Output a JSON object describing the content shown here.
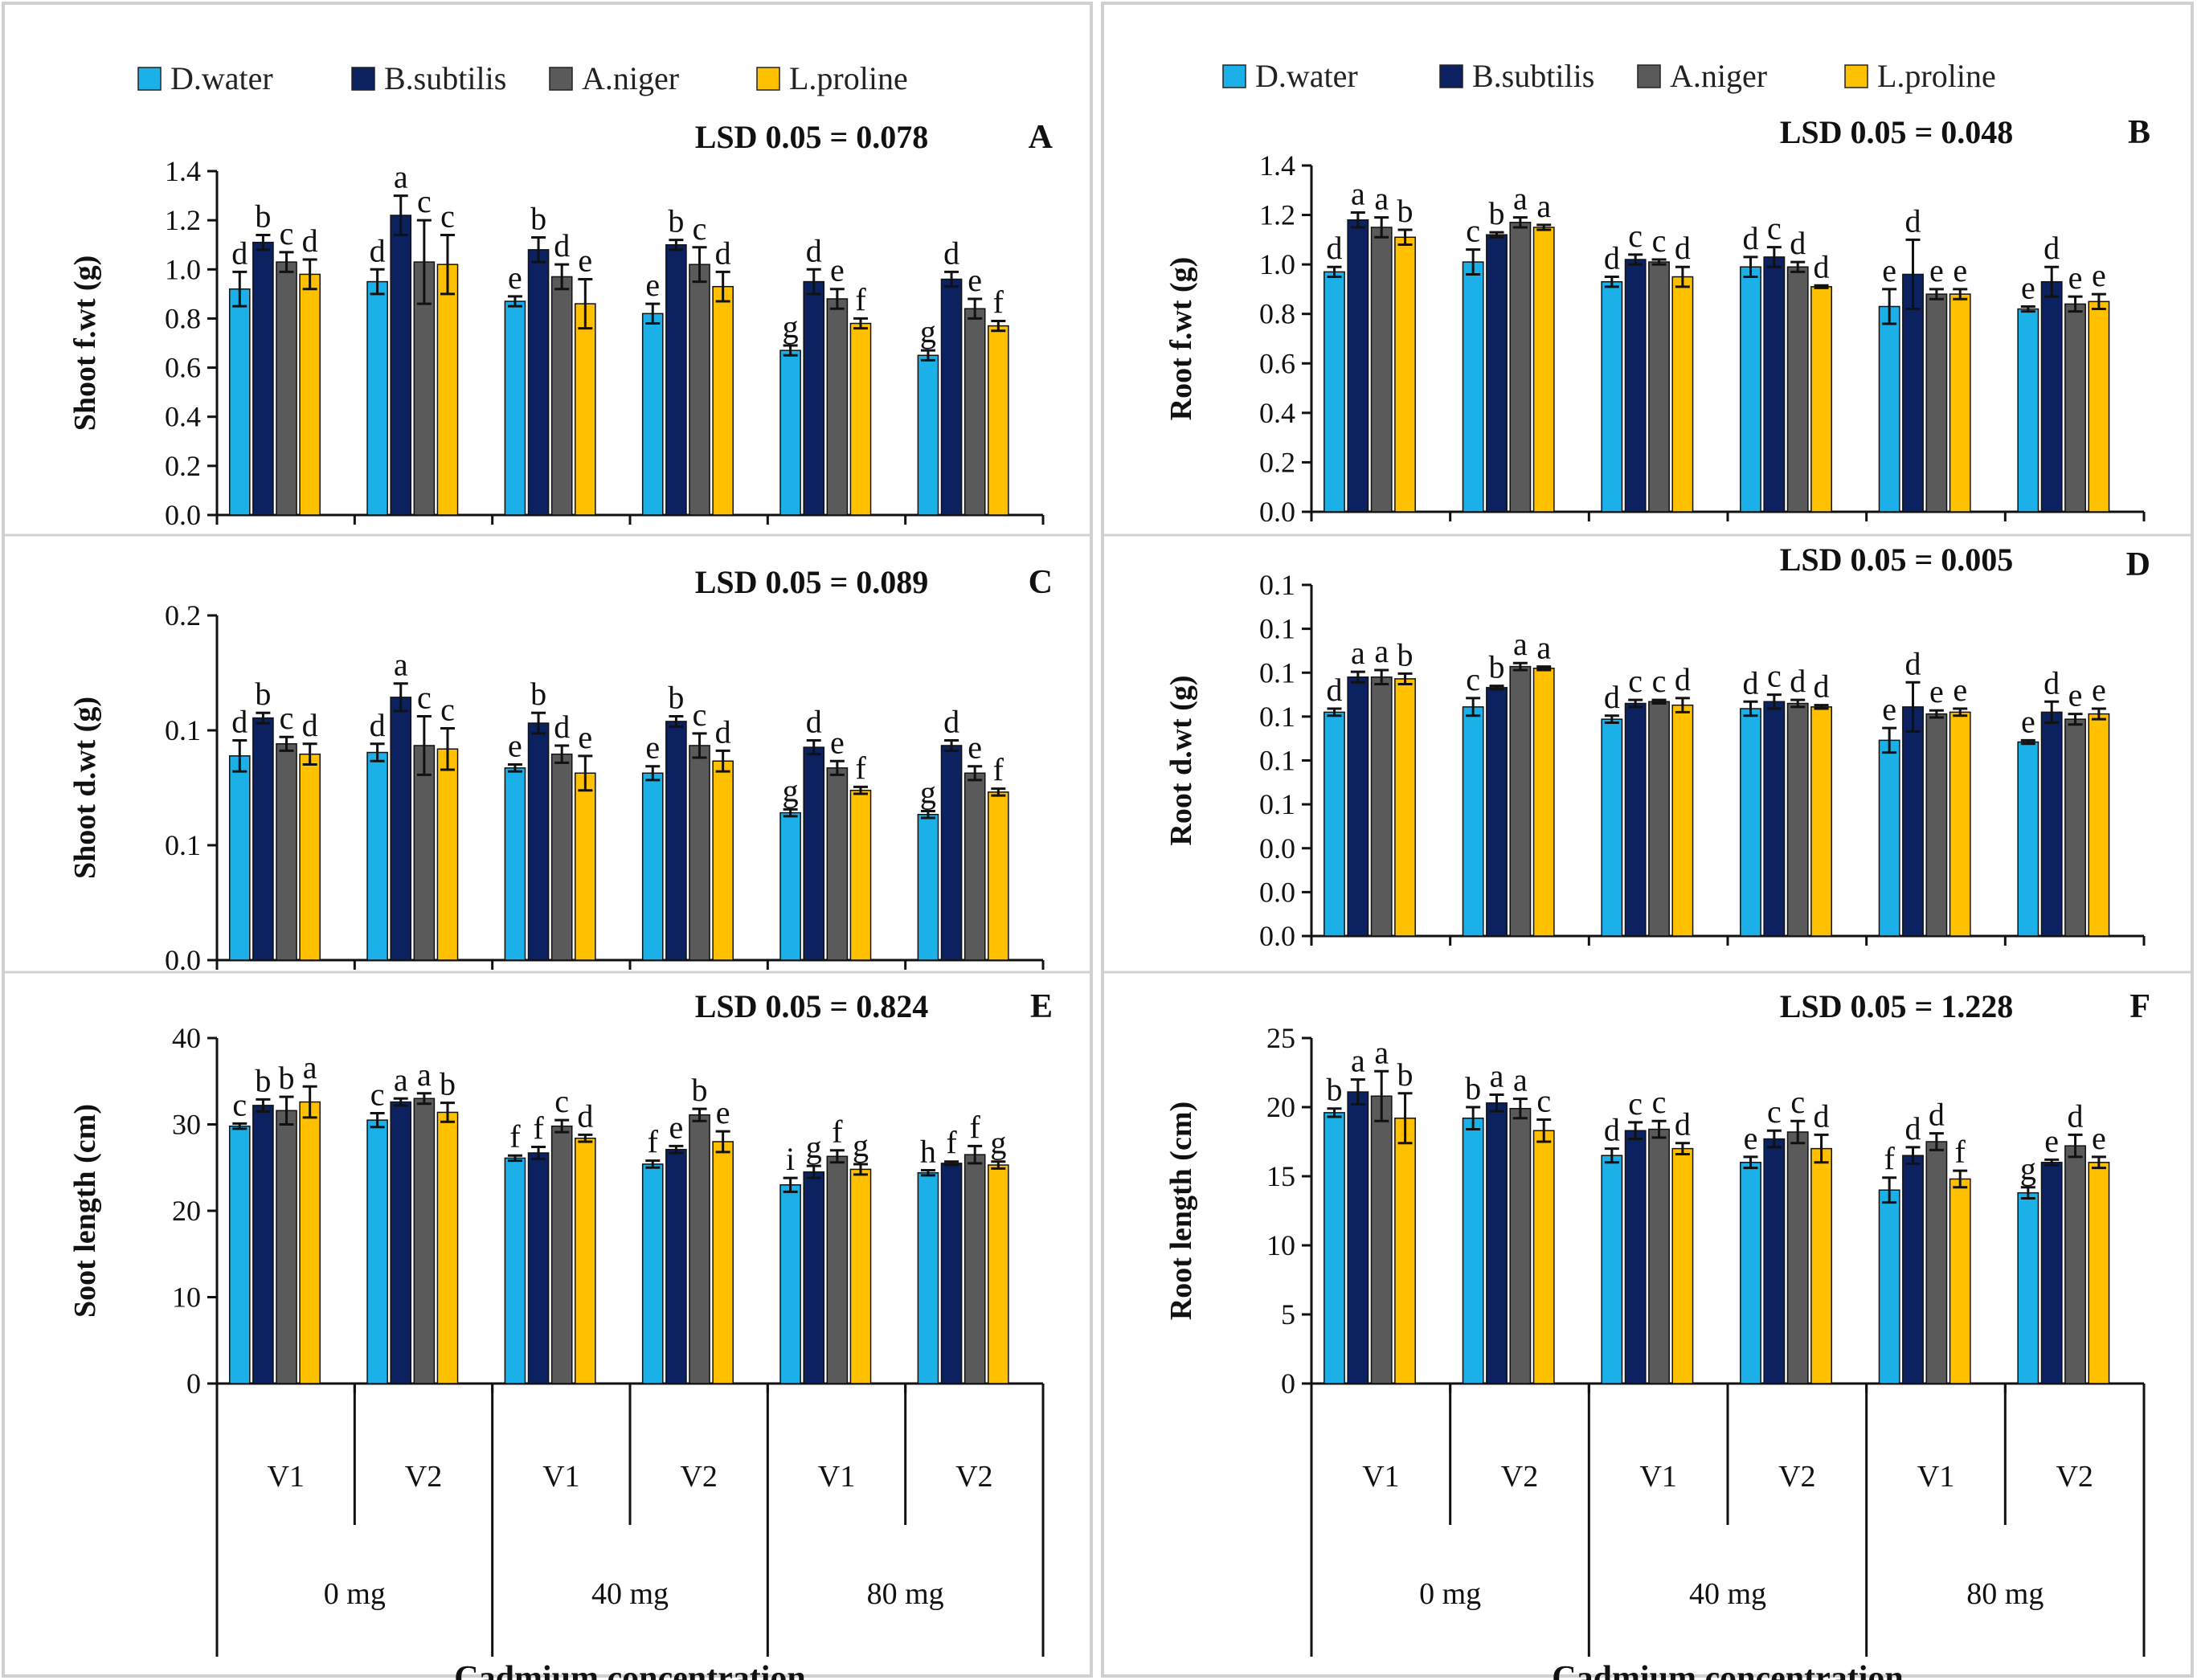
{
  "chart_data": {
    "type": "bar",
    "series_names": [
      "D.water",
      "B.subtilis",
      "A.niger",
      "L.proline"
    ],
    "colors": [
      "#1cb0e8",
      "#0c2260",
      "#5a5a5a",
      "#ffc000"
    ],
    "x_groups": [
      "V1",
      "V2",
      "V1",
      "V2",
      "V1",
      "V2"
    ],
    "x_supergroups": [
      "0 mg",
      "40 mg",
      "80 mg"
    ],
    "xlabel": "Cadmium concentration",
    "panels": [
      {
        "id": "A",
        "ylabel": "Shoot f.wt (g)",
        "lsd": "LSD 0.05 = 0.078",
        "ylim": [
          0,
          1.4
        ],
        "ytick_labels": [
          "0.0",
          "0.2",
          "0.4",
          "0.6",
          "0.8",
          "1.0",
          "1.2",
          "1.4"
        ],
        "series": [
          {
            "name": "D.water",
            "values": [
              0.92,
              0.95,
              0.87,
              0.82,
              0.67,
              0.65
            ],
            "errors": [
              0.07,
              0.05,
              0.02,
              0.04,
              0.02,
              0.02
            ],
            "letters": [
              "d",
              "d",
              "e",
              "e",
              "g",
              "g"
            ]
          },
          {
            "name": "B.subtilis",
            "values": [
              1.11,
              1.22,
              1.08,
              1.1,
              0.95,
              0.96
            ],
            "errors": [
              0.03,
              0.08,
              0.05,
              0.02,
              0.05,
              0.03
            ],
            "letters": [
              "b",
              "a",
              "b",
              "b",
              "d",
              "d"
            ]
          },
          {
            "name": "A.niger",
            "values": [
              1.03,
              1.03,
              0.97,
              1.02,
              0.88,
              0.84
            ],
            "errors": [
              0.04,
              0.17,
              0.05,
              0.07,
              0.04,
              0.04
            ],
            "letters": [
              "c",
              "c",
              "d",
              "c",
              "e",
              "e"
            ]
          },
          {
            "name": "L.proline",
            "values": [
              0.98,
              1.02,
              0.86,
              0.93,
              0.78,
              0.77
            ],
            "errors": [
              0.06,
              0.12,
              0.1,
              0.06,
              0.02,
              0.02
            ],
            "letters": [
              "d",
              "c",
              "e",
              "d",
              "f",
              "f"
            ]
          }
        ]
      },
      {
        "id": "B",
        "ylabel": "Root f.wt (g)",
        "lsd": "LSD 0.05 = 0.048",
        "ylim": [
          0,
          1.4
        ],
        "ytick_labels": [
          "0.0",
          "0.2",
          "0.4",
          "0.6",
          "0.8",
          "1.0",
          "1.2",
          "1.4"
        ],
        "series": [
          {
            "name": "D.water",
            "values": [
              0.97,
              1.01,
              0.93,
              0.99,
              0.83,
              0.82
            ],
            "errors": [
              0.02,
              0.05,
              0.02,
              0.04,
              0.07,
              0.01
            ],
            "letters": [
              "d",
              "c",
              "d",
              "d",
              "e",
              "e"
            ]
          },
          {
            "name": "B.subtilis",
            "values": [
              1.18,
              1.12,
              1.02,
              1.03,
              0.96,
              0.93
            ],
            "errors": [
              0.03,
              0.01,
              0.02,
              0.04,
              0.14,
              0.06
            ],
            "letters": [
              "a",
              "b",
              "c",
              "c",
              "d",
              "d"
            ]
          },
          {
            "name": "A.niger",
            "values": [
              1.15,
              1.17,
              1.01,
              0.99,
              0.88,
              0.84
            ],
            "errors": [
              0.04,
              0.02,
              0.01,
              0.02,
              0.02,
              0.03
            ],
            "letters": [
              "a",
              "a",
              "c",
              "d",
              "e",
              "e"
            ]
          },
          {
            "name": "L.proline",
            "values": [
              1.11,
              1.15,
              0.95,
              0.91,
              0.88,
              0.85
            ],
            "errors": [
              0.03,
              0.01,
              0.04,
              0.005,
              0.02,
              0.03
            ],
            "letters": [
              "b",
              "a",
              "d",
              "d",
              "e",
              "e"
            ]
          }
        ]
      },
      {
        "id": "C",
        "ylabel": "Shoot d.wt (g)",
        "lsd": "LSD 0.05 = 0.089",
        "ylim": [
          0,
          0.2
        ],
        "ytick_labels": [
          "0.0",
          "0.1",
          "0.1",
          "0.2"
        ],
        "series": [
          {
            "name": "D.water",
            "values": [
              0.1185,
              0.1205,
              0.1115,
              0.1085,
              0.0855,
              0.0845
            ],
            "errors": [
              0.009,
              0.005,
              0.002,
              0.004,
              0.002,
              0.002
            ],
            "letters": [
              "d",
              "d",
              "e",
              "e",
              "g",
              "g"
            ]
          },
          {
            "name": "B.subtilis",
            "values": [
              0.1405,
              0.1525,
              0.1375,
              0.1385,
              0.1235,
              0.1245
            ],
            "errors": [
              0.003,
              0.008,
              0.006,
              0.003,
              0.004,
              0.003
            ],
            "letters": [
              "b",
              "a",
              "b",
              "b",
              "d",
              "d"
            ]
          },
          {
            "name": "A.niger",
            "values": [
              0.1255,
              0.1245,
              0.1195,
              0.1245,
              0.1115,
              0.1085
            ],
            "errors": [
              0.004,
              0.017,
              0.005,
              0.007,
              0.004,
              0.004
            ],
            "letters": [
              "c",
              "c",
              "d",
              "c",
              "e",
              "e"
            ]
          },
          {
            "name": "L.proline",
            "values": [
              0.1195,
              0.1225,
              0.1085,
              0.1155,
              0.0985,
              0.0975
            ],
            "errors": [
              0.006,
              0.012,
              0.01,
              0.006,
              0.002,
              0.002
            ],
            "letters": [
              "d",
              "c",
              "e",
              "d",
              "f",
              "f"
            ]
          }
        ]
      },
      {
        "id": "D",
        "ylabel": "Root d.wt (g)",
        "lsd": "LSD 0.05 = 0.005",
        "ylim": [
          0,
          0.2
        ],
        "ytick_labels": [
          "0.0",
          "0.0",
          "0.0",
          "0.1",
          "0.1",
          "0.1",
          "0.1",
          "0.1",
          "0.1"
        ],
        "series": [
          {
            "name": "D.water",
            "values": [
              0.1275,
              0.1305,
              0.1235,
              0.1295,
              0.1115,
              0.1105
            ],
            "errors": [
              0.002,
              0.005,
              0.002,
              0.004,
              0.007,
              0.001
            ],
            "letters": [
              "d",
              "c",
              "d",
              "d",
              "e",
              "e"
            ]
          },
          {
            "name": "B.subtilis",
            "values": [
              0.1475,
              0.1415,
              0.1325,
              0.1335,
              0.1305,
              0.1275
            ],
            "errors": [
              0.003,
              0.001,
              0.002,
              0.004,
              0.014,
              0.006
            ],
            "letters": [
              "a",
              "b",
              "c",
              "c",
              "d",
              "d"
            ]
          },
          {
            "name": "A.niger",
            "values": [
              0.1475,
              0.1535,
              0.1335,
              0.1325,
              0.1265,
              0.1235
            ],
            "errors": [
              0.004,
              0.002,
              0.001,
              0.002,
              0.002,
              0.003
            ],
            "letters": [
              "a",
              "a",
              "c",
              "d",
              "e",
              "e"
            ]
          },
          {
            "name": "L.proline",
            "values": [
              0.1465,
              0.1525,
              0.1315,
              0.1305,
              0.1275,
              0.1265
            ],
            "errors": [
              0.003,
              0.001,
              0.004,
              0.001,
              0.002,
              0.003
            ],
            "letters": [
              "b",
              "a",
              "d",
              "d",
              "e",
              "e"
            ]
          }
        ]
      },
      {
        "id": "E",
        "ylabel": "Soot length (cm)",
        "lsd": "LSD 0.05 = 0.824",
        "ylim": [
          0,
          40
        ],
        "ytick_labels": [
          "0",
          "10",
          "20",
          "30",
          "40"
        ],
        "series": [
          {
            "name": "D.water",
            "values": [
              29.8,
              30.5,
              26.1,
              25.4,
              23.0,
              24.4
            ],
            "errors": [
              0.3,
              0.8,
              0.3,
              0.4,
              0.8,
              0.3
            ],
            "letters": [
              "c",
              "c",
              "f",
              "f",
              "i",
              "h"
            ]
          },
          {
            "name": "B.subtilis",
            "values": [
              32.2,
              32.6,
              26.7,
              27.1,
              24.5,
              25.5
            ],
            "errors": [
              0.7,
              0.4,
              0.7,
              0.4,
              0.7,
              0.2
            ],
            "letters": [
              "b",
              "a",
              "f",
              "e",
              "g",
              "f"
            ]
          },
          {
            "name": "A.niger",
            "values": [
              31.6,
              33.0,
              29.8,
              31.1,
              26.3,
              26.5
            ],
            "errors": [
              1.6,
              0.6,
              0.7,
              0.7,
              0.7,
              1.0
            ],
            "letters": [
              "b",
              "a",
              "c",
              "b",
              "f",
              "f"
            ]
          },
          {
            "name": "L.proline",
            "values": [
              32.6,
              31.4,
              28.4,
              28.0,
              24.8,
              25.3
            ],
            "errors": [
              1.8,
              1.1,
              0.4,
              1.2,
              0.6,
              0.4
            ],
            "letters": [
              "a",
              "b",
              "d",
              "e",
              "g",
              "g"
            ]
          }
        ]
      },
      {
        "id": "F",
        "ylabel": "Root length (cm)",
        "lsd": "LSD 0.05 = 1.228",
        "ylim": [
          0,
          25
        ],
        "ytick_labels": [
          "0",
          "5",
          "10",
          "15",
          "20",
          "25"
        ],
        "series": [
          {
            "name": "D.water",
            "values": [
              19.6,
              19.2,
              16.5,
              16.0,
              14.0,
              13.8
            ],
            "errors": [
              0.3,
              0.8,
              0.5,
              0.4,
              0.9,
              0.4
            ],
            "letters": [
              "b",
              "b",
              "d",
              "e",
              "f",
              "g"
            ]
          },
          {
            "name": "B.subtilis",
            "values": [
              21.1,
              20.3,
              18.3,
              17.7,
              16.5,
              16.0
            ],
            "errors": [
              0.9,
              0.6,
              0.6,
              0.6,
              0.6,
              0.2
            ],
            "letters": [
              "a",
              "a",
              "c",
              "c",
              "d",
              "e"
            ]
          },
          {
            "name": "A.niger",
            "values": [
              20.8,
              19.9,
              18.4,
              18.2,
              17.5,
              17.2
            ],
            "errors": [
              1.8,
              0.7,
              0.6,
              0.8,
              0.6,
              0.8
            ],
            "letters": [
              "a",
              "a",
              "c",
              "c",
              "d",
              "d"
            ]
          },
          {
            "name": "L.proline",
            "values": [
              19.2,
              18.3,
              17.0,
              17.0,
              14.8,
              16.0
            ],
            "errors": [
              1.8,
              0.8,
              0.4,
              1.0,
              0.6,
              0.4
            ],
            "letters": [
              "b",
              "c",
              "d",
              "d",
              "f",
              "e"
            ]
          }
        ]
      }
    ]
  }
}
